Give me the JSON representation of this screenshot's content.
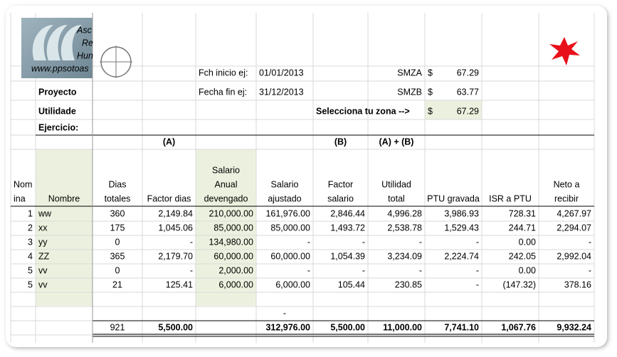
{
  "logo": {
    "lines": [
      "Asc",
      "Re",
      "Hun"
    ],
    "url": "www.ppsotoas"
  },
  "title": {
    "line1": "Proyecto",
    "line2": "Utilidade",
    "line3": "Ejercicio:"
  },
  "info": {
    "start_label": "Fch inicio ej:",
    "start_value": "01/01/2013",
    "end_label": "Fecha fin ej:",
    "end_value": "31/12/2013",
    "smza_label": "SMZA",
    "smza_currency": "$",
    "smza_value": "67.29",
    "smzb_label": "SMZB",
    "smzb_currency": "$",
    "smzb_value": "63.77",
    "zone_label": "Selecciona tu zona -->",
    "zone_currency": "$",
    "zone_value": "67.29"
  },
  "table": {
    "tags": [
      null,
      null,
      null,
      "(A)",
      null,
      null,
      "(B)",
      "(A) + (B)",
      null,
      null,
      null
    ],
    "headers": [
      [
        "Nom",
        "ina"
      ],
      [
        "Nombre"
      ],
      [
        "Dias",
        "totales"
      ],
      [
        "Factor dias"
      ],
      [
        "Salario",
        "Anual",
        "devengado"
      ],
      [
        "Salario",
        "ajustado"
      ],
      [
        "Factor",
        "salario"
      ],
      [
        "Utilidad",
        "total"
      ],
      [
        "PTU gravada"
      ],
      [
        "ISR a PTU"
      ],
      [
        "Neto a",
        "recibir"
      ]
    ],
    "rows": [
      [
        "1",
        "ww",
        "360",
        "2,149.84",
        "210,000.00",
        "161,976.00",
        "2,846.44",
        "4,996.28",
        "3,986.93",
        "728.31",
        "4,267.97"
      ],
      [
        "2",
        "xx",
        "175",
        "1,045.06",
        "85,000.00",
        "85,000.00",
        "1,493.72",
        "2,538.78",
        "1,529.43",
        "244.71",
        "2,294.07"
      ],
      [
        "3",
        "yy",
        "0",
        "-",
        "134,980.00",
        "-",
        "-",
        "-",
        "-",
        "0.00",
        "-"
      ],
      [
        "4",
        "ZZ",
        "365",
        "2,179.70",
        "60,000.00",
        "60,000.00",
        "1,054.39",
        "3,234.09",
        "2,224.74",
        "242.05",
        "2,992.04"
      ],
      [
        "5",
        "vv",
        "0",
        "-",
        "2,000.00",
        "-",
        "-",
        "-",
        "-",
        "0.00",
        "-"
      ],
      [
        "5",
        "vv",
        "21",
        "125.41",
        "6,000.00",
        "6,000.00",
        "105.44",
        "230.85",
        "-",
        "(147.32)",
        "378.16"
      ]
    ],
    "extra": [
      null,
      null,
      null,
      null,
      null,
      "-",
      null,
      null,
      null,
      null,
      null
    ],
    "totals": [
      null,
      null,
      "921",
      "5,500.00",
      null,
      "312,976.00",
      "5,500.00",
      "11,000.00",
      "7,741.10",
      "1,067.76",
      "9,932.24"
    ]
  }
}
